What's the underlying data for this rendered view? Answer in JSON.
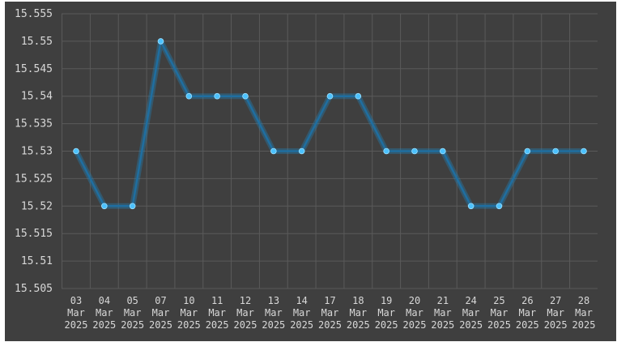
{
  "chart_data": {
    "type": "line",
    "title": "",
    "xlabel": "",
    "ylabel": "",
    "categories": [
      [
        "03",
        "Mar",
        "2025"
      ],
      [
        "04",
        "Mar",
        "2025"
      ],
      [
        "05",
        "Mar",
        "2025"
      ],
      [
        "07",
        "Mar",
        "2025"
      ],
      [
        "10",
        "Mar",
        "2025"
      ],
      [
        "11",
        "Mar",
        "2025"
      ],
      [
        "12",
        "Mar",
        "2025"
      ],
      [
        "13",
        "Mar",
        "2025"
      ],
      [
        "14",
        "Mar",
        "2025"
      ],
      [
        "17",
        "Mar",
        "2025"
      ],
      [
        "18",
        "Mar",
        "2025"
      ],
      [
        "19",
        "Mar",
        "2025"
      ],
      [
        "20",
        "Mar",
        "2025"
      ],
      [
        "21",
        "Mar",
        "2025"
      ],
      [
        "24",
        "Mar",
        "2025"
      ],
      [
        "25",
        "Mar",
        "2025"
      ],
      [
        "26",
        "Mar",
        "2025"
      ],
      [
        "27",
        "Mar",
        "2025"
      ],
      [
        "28",
        "Mar",
        "2025"
      ]
    ],
    "series": [
      {
        "values": [
          15.53,
          15.52,
          15.52,
          15.55,
          15.54,
          15.54,
          15.54,
          15.53,
          15.53,
          15.54,
          15.54,
          15.53,
          15.53,
          15.53,
          15.52,
          15.52,
          15.53,
          15.53,
          15.53
        ]
      }
    ],
    "ylim": [
      15.505,
      15.555
    ],
    "yticks": [
      "15.555",
      "15.55",
      "15.545",
      "15.54",
      "15.535",
      "15.53",
      "15.525",
      "15.52",
      "15.515",
      "15.51",
      "15.505"
    ],
    "grid": true,
    "colors": {
      "background": "#3f3f3f",
      "grid": "#5a5a5a",
      "line": "#1f6ea0",
      "point": "#4cc2ff",
      "text": "#d8d8d8"
    }
  }
}
